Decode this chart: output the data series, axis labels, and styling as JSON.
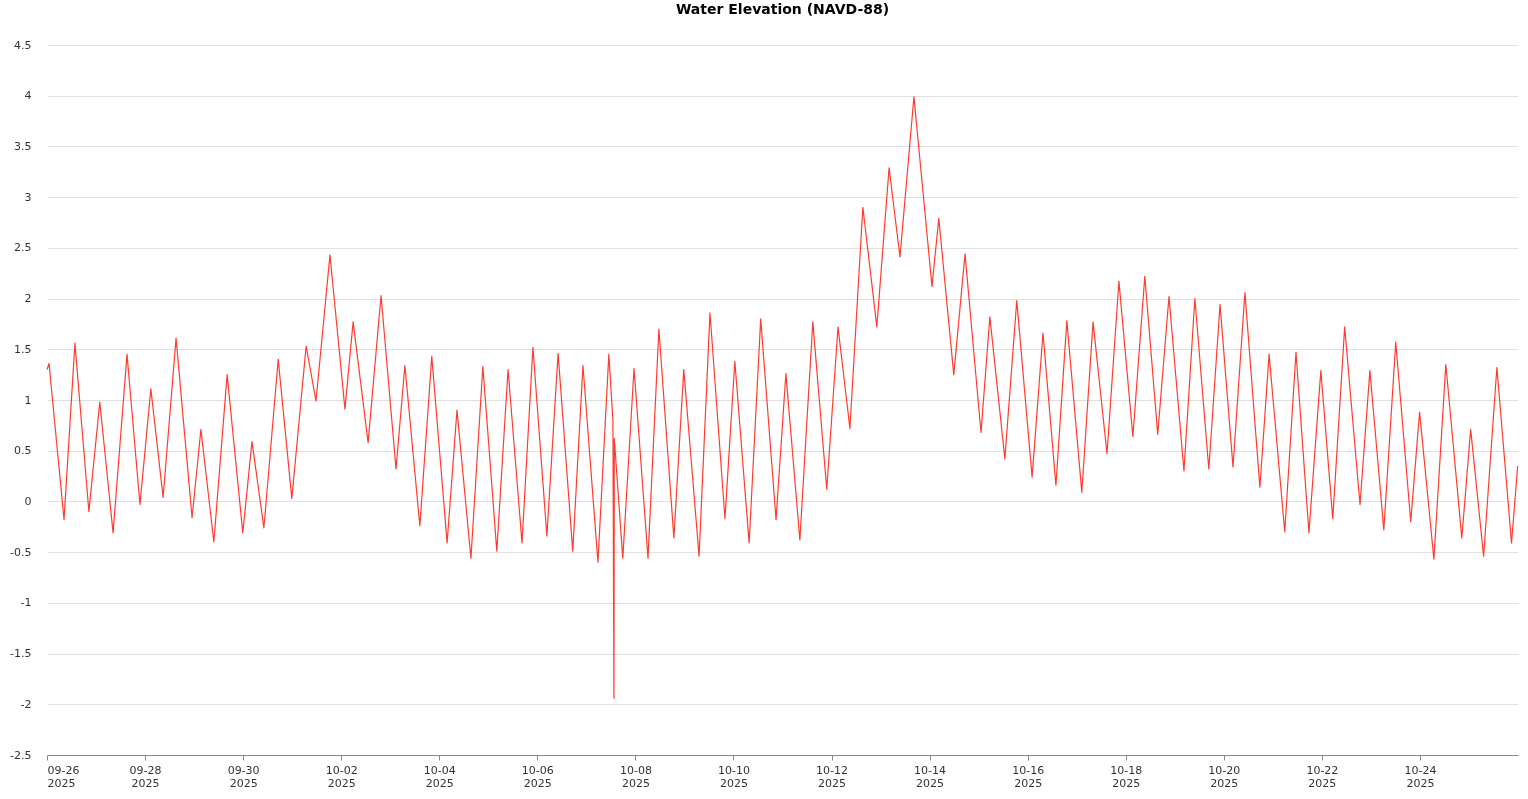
{
  "chart_data": {
    "type": "line",
    "title": "Water Elevation (NAVD-88)",
    "x": [
      "2025-09-26T00:00",
      "2025-09-26T01:00",
      "2025-09-26T08:20",
      "2025-09-26T13:40",
      "2025-09-26T20:30",
      "2025-09-27T01:50",
      "2025-09-27T08:20",
      "2025-09-27T15:10",
      "2025-09-27T21:30",
      "2025-09-28T02:50",
      "2025-09-28T08:50",
      "2025-09-28T15:10",
      "2025-09-28T23:00",
      "2025-09-29T03:20",
      "2025-09-29T09:40",
      "2025-09-29T16:10",
      "2025-09-29T23:50",
      "2025-09-30T04:20",
      "2025-09-30T10:10",
      "2025-09-30T17:10",
      "2025-09-30T23:50",
      "2025-10-01T06:50",
      "2025-10-01T11:40",
      "2025-10-01T18:30",
      "2025-10-02T01:50",
      "2025-10-02T05:50",
      "2025-10-02T13:10",
      "2025-10-02T19:30",
      "2025-10-03T02:50",
      "2025-10-03T07:10",
      "2025-10-03T14:30",
      "2025-10-03T20:20",
      "2025-10-04T03:50",
      "2025-10-04T08:40",
      "2025-10-04T15:30",
      "2025-10-04T21:20",
      "2025-10-05T04:10",
      "2025-10-05T09:40",
      "2025-10-05T16:30",
      "2025-10-05T21:50",
      "2025-10-06T04:40",
      "2025-10-06T10:10",
      "2025-10-06T17:20",
      "2025-10-06T22:20",
      "2025-10-07T05:40",
      "2025-10-07T11:00",
      "2025-10-07T13:00",
      "2025-10-07T13:30",
      "2025-10-07T13:40",
      "2025-10-07T17:50",
      "2025-10-07T23:20",
      "2025-10-08T06:10",
      "2025-10-08T11:30",
      "2025-10-08T18:50",
      "2025-10-08T23:40",
      "2025-10-09T07:10",
      "2025-10-09T12:30",
      "2025-10-09T19:50",
      "2025-10-10T00:40",
      "2025-10-10T07:40",
      "2025-10-10T13:20",
      "2025-10-10T20:50",
      "2025-10-11T01:40",
      "2025-10-11T08:30",
      "2025-10-11T14:50",
      "2025-10-11T21:40",
      "2025-10-12T03:10",
      "2025-10-12T09:00",
      "2025-10-12T15:20",
      "2025-10-12T22:10",
      "2025-10-13T04:10",
      "2025-10-13T09:30",
      "2025-10-13T16:20",
      "2025-10-14T01:10",
      "2025-10-14T04:30",
      "2025-10-14T11:50",
      "2025-10-14T17:20",
      "2025-10-15T01:10",
      "2025-10-15T05:30",
      "2025-10-15T12:50",
      "2025-10-15T18:40",
      "2025-10-16T02:10",
      "2025-10-16T07:30",
      "2025-10-16T13:50",
      "2025-10-16T19:10",
      "2025-10-17T02:30",
      "2025-10-17T08:00",
      "2025-10-17T14:50",
      "2025-10-17T20:40",
      "2025-10-18T03:30",
      "2025-10-18T09:20",
      "2025-10-18T15:40",
      "2025-10-18T21:10",
      "2025-10-19T04:30",
      "2025-10-19T09:50",
      "2025-10-19T16:40",
      "2025-10-19T22:10",
      "2025-10-20T04:30",
      "2025-10-20T10:20",
      "2025-10-20T17:40",
      "2025-10-20T22:10",
      "2025-10-21T05:50",
      "2025-10-21T11:20",
      "2025-10-21T17:40",
      "2025-10-21T23:30",
      "2025-10-22T05:20",
      "2025-10-22T11:10",
      "2025-10-22T18:40",
      "2025-10-22T23:30",
      "2025-10-23T06:20",
      "2025-10-23T12:10",
      "2025-10-23T19:30",
      "2025-10-23T23:50",
      "2025-10-24T06:50",
      "2025-10-24T12:40",
      "2025-10-24T20:30",
      "2025-10-25T00:50",
      "2025-10-25T07:10",
      "2025-10-25T13:40",
      "2025-10-25T20:50",
      "2025-10-25T23:50"
    ],
    "series": [
      {
        "color": "#ff3b2f",
        "values": [
          1.3,
          1.36,
          -0.18,
          1.56,
          -0.1,
          0.98,
          -0.31,
          1.45,
          -0.03,
          1.11,
          0.04,
          1.61,
          -0.16,
          0.71,
          -0.4,
          1.25,
          -0.31,
          0.59,
          -0.26,
          1.4,
          0.03,
          1.53,
          0.99,
          2.43,
          0.91,
          1.77,
          0.58,
          2.03,
          0.32,
          1.34,
          -0.24,
          1.43,
          -0.41,
          0.9,
          -0.56,
          1.33,
          -0.49,
          1.3,
          -0.41,
          1.52,
          -0.34,
          1.46,
          -0.49,
          1.34,
          -0.6,
          1.45,
          0.8,
          -1.94,
          0.62,
          -0.56,
          1.31,
          -0.56,
          1.7,
          -0.36,
          1.3,
          -0.54,
          1.86,
          -0.17,
          1.38,
          -0.41,
          1.8,
          -0.18,
          1.26,
          -0.38,
          1.77,
          0.12,
          1.72,
          0.72,
          2.9,
          1.72,
          3.29,
          2.41,
          3.99,
          2.12,
          2.79,
          1.25,
          2.44,
          0.68,
          1.82,
          0.42,
          1.98,
          0.24,
          1.66,
          0.16,
          1.78,
          0.09,
          1.77,
          0.47,
          2.17,
          0.64,
          2.22,
          0.66,
          2.02,
          0.3,
          2.0,
          0.32,
          1.94,
          0.34,
          2.06,
          0.14,
          1.45,
          -0.3,
          1.47,
          -0.31,
          1.29,
          -0.17,
          1.72,
          -0.03,
          1.29,
          -0.28,
          1.57,
          -0.2,
          0.88,
          -0.57,
          1.35,
          -0.36,
          0.71,
          -0.54,
          1.32,
          -0.41,
          0.35
        ]
      }
    ],
    "xlim": [
      "2025-09-26",
      "2025-10-26"
    ],
    "xticks": [
      {
        "value": "2025-09-26",
        "label": "09-26\n2025"
      },
      {
        "value": "2025-09-28",
        "label": "09-28\n2025"
      },
      {
        "value": "2025-09-30",
        "label": "09-30\n2025"
      },
      {
        "value": "2025-10-02",
        "label": "10-02\n2025"
      },
      {
        "value": "2025-10-04",
        "label": "10-04\n2025"
      },
      {
        "value": "2025-10-06",
        "label": "10-06\n2025"
      },
      {
        "value": "2025-10-08",
        "label": "10-08\n2025"
      },
      {
        "value": "2025-10-10",
        "label": "10-10\n2025"
      },
      {
        "value": "2025-10-12",
        "label": "10-12\n2025"
      },
      {
        "value": "2025-10-14",
        "label": "10-14\n2025"
      },
      {
        "value": "2025-10-16",
        "label": "10-16\n2025"
      },
      {
        "value": "2025-10-18",
        "label": "10-18\n2025"
      },
      {
        "value": "2025-10-20",
        "label": "10-20\n2025"
      },
      {
        "value": "2025-10-22",
        "label": "10-22\n2025"
      },
      {
        "value": "2025-10-24",
        "label": "10-24\n2025"
      }
    ],
    "ylim": [
      -2.5,
      4.5
    ],
    "yticks": [
      -2.5,
      -2,
      -1.5,
      -1,
      -0.5,
      0,
      0.5,
      1,
      1.5,
      2,
      2.5,
      3,
      3.5,
      4,
      4.5
    ],
    "grid": "y",
    "marker": "none",
    "line_style": "solid"
  }
}
